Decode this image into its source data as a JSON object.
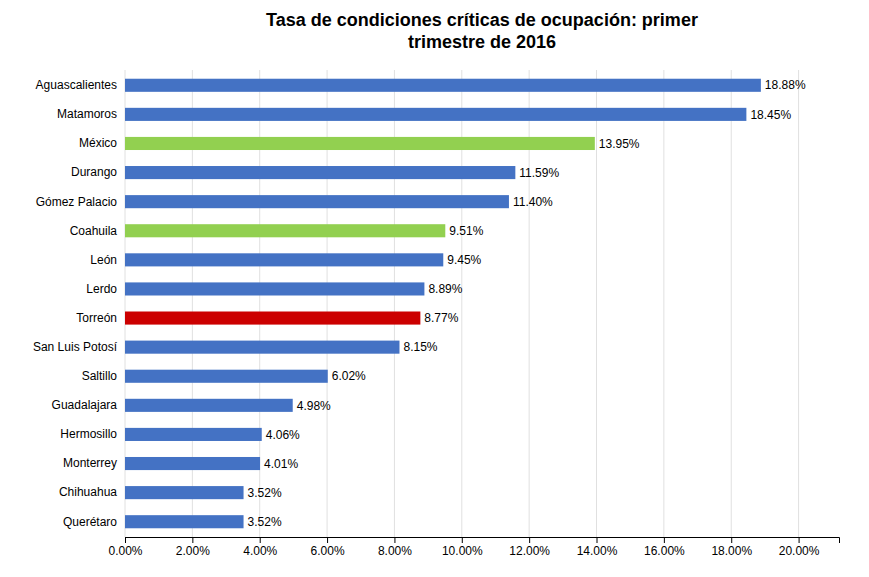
{
  "chart_data": {
    "type": "bar",
    "orientation": "horizontal",
    "title": "Tasa de condiciones críticas de ocupación: primer\ntrimestre de 2016",
    "categories": [
      "Querétaro",
      "Chihuahua",
      "Monterrey",
      "Hermosillo",
      "Guadalajara",
      "Saltillo",
      "San Luis Potosí",
      "Torreón",
      "Lerdo",
      "León",
      "Coahuila",
      "Gómez Palacio",
      "Durango",
      "México",
      "Matamoros",
      "Aguascalientes"
    ],
    "values": [
      3.52,
      3.52,
      4.01,
      4.06,
      4.98,
      6.02,
      8.15,
      8.77,
      8.89,
      9.45,
      9.51,
      11.4,
      11.59,
      13.95,
      18.45,
      18.88
    ],
    "value_labels": [
      "3.52%",
      "3.52%",
      "4.01%",
      "4.06%",
      "4.98%",
      "6.02%",
      "8.15%",
      "8.77%",
      "8.89%",
      "9.45%",
      "9.51%",
      "11.40%",
      "11.59%",
      "13.95%",
      "18.45%",
      "18.88%"
    ],
    "data_labels": true,
    "colors": [
      "#4472C4",
      "#4472C4",
      "#4472C4",
      "#4472C4",
      "#4472C4",
      "#4472C4",
      "#4472C4",
      "#CC0000",
      "#4472C4",
      "#4472C4",
      "#92D050",
      "#4472C4",
      "#4472C4",
      "#92D050",
      "#4472C4",
      "#4472C4"
    ],
    "xlim": [
      0,
      21.2
    ],
    "xticks": [
      {
        "value": 0,
        "label": "0.00%"
      },
      {
        "value": 2,
        "label": "2.00%"
      },
      {
        "value": 4,
        "label": "4.00%"
      },
      {
        "value": 6,
        "label": "6.00%"
      },
      {
        "value": 8,
        "label": "8.00%"
      },
      {
        "value": 10,
        "label": "10.00%"
      },
      {
        "value": 12,
        "label": "12.00%"
      },
      {
        "value": 14,
        "label": "14.00%"
      },
      {
        "value": 16,
        "label": "16.00%"
      },
      {
        "value": 18,
        "label": "18.00%"
      },
      {
        "value": 20,
        "label": "20.00%"
      }
    ],
    "grid": true
  }
}
